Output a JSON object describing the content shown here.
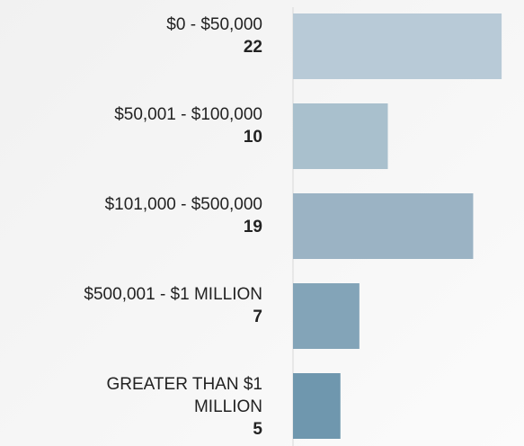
{
  "chart_data": {
    "type": "bar",
    "orientation": "horizontal",
    "categories": [
      "$0 - $50,000",
      "$50,001 - $100,000",
      "$101,000 - $500,000",
      "$500,001 - $1 MILLION",
      "GREATER THAN $1 MILLION"
    ],
    "values": [
      22,
      10,
      19,
      7,
      5
    ],
    "colors": [
      "#b8cad7",
      "#a9c0cd",
      "#9bb3c4",
      "#83a4b8",
      "#6f97ae"
    ]
  }
}
